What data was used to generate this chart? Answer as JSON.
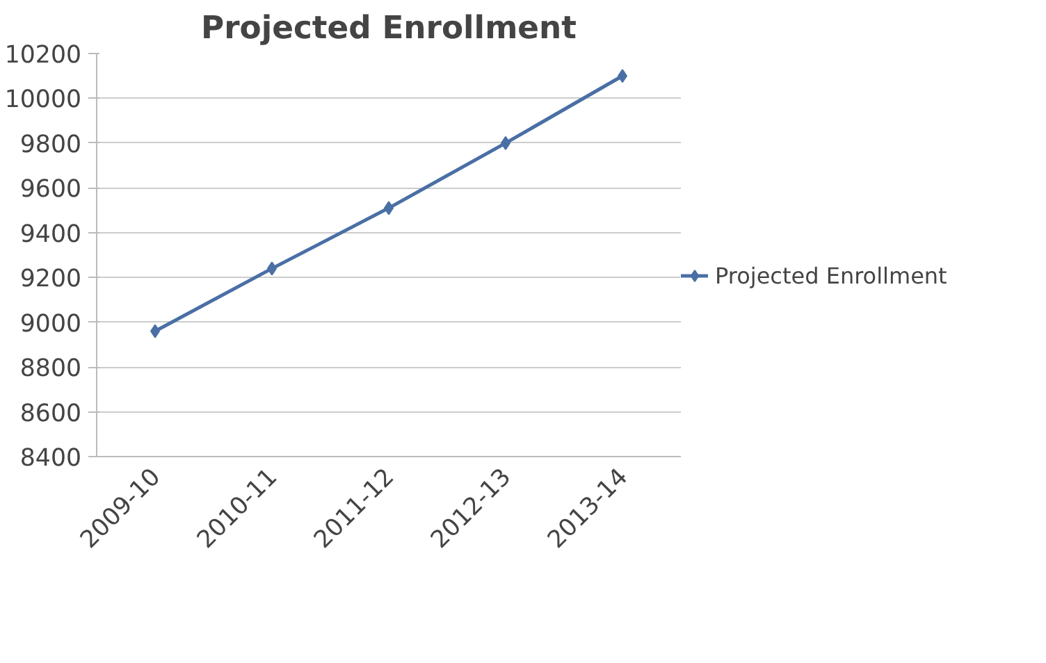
{
  "chart_data": {
    "type": "line",
    "title": "Projected Enrollment",
    "categories": [
      "2009-10",
      "2010-11",
      "2011-12",
      "2012-13",
      "2013-14"
    ],
    "series": [
      {
        "name": "Projected Enrollment",
        "color": "#4a6fa5",
        "values": [
          8960,
          9240,
          9510,
          9800,
          10100
        ]
      }
    ],
    "ylim": [
      8400,
      10200
    ],
    "yticks": [
      8400,
      8600,
      8800,
      9000,
      9200,
      9400,
      9600,
      9800,
      10000,
      10200
    ],
    "grid": "y",
    "legend": "right",
    "marker": "diamond",
    "line_style": "solid"
  }
}
